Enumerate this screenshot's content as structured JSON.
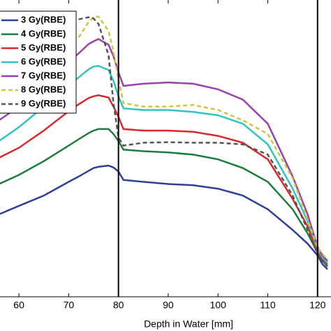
{
  "chart_data": {
    "type": "line",
    "xlabel": "Depth in Water [mm]",
    "x": [
      56,
      60,
      65,
      70,
      72,
      74,
      75,
      76,
      78,
      79,
      80,
      81,
      85,
      90,
      95,
      100,
      105,
      110,
      115,
      118,
      120,
      121,
      122
    ],
    "xlim": [
      56.2,
      122.7
    ],
    "xticks": [
      60,
      70,
      80,
      90,
      100,
      110,
      120
    ],
    "ylim": [
      5,
      100
    ],
    "vlines": [
      80,
      120
    ],
    "series": [
      {
        "name": "3 Gy(RBE)",
        "color": "#2b3f9b",
        "dashed": false,
        "values": [
          31.4,
          34.1,
          37.4,
          41.8,
          43.5,
          45.3,
          46.2,
          46.6,
          47.0,
          46.4,
          45.1,
          42.4,
          41.8,
          41.1,
          40.7,
          39.6,
          37.4,
          33.0,
          26.4,
          22.0,
          18.2,
          15.4,
          13.8
        ]
      },
      {
        "name": "4 Gy(RBE)",
        "color": "#1b7d3b",
        "dashed": false,
        "values": [
          41.1,
          44.0,
          48.4,
          53.4,
          55.4,
          57.4,
          58.2,
          58.7,
          58.7,
          57.1,
          54.9,
          52.1,
          51.6,
          51.2,
          50.5,
          49.0,
          46.2,
          41.8,
          33.0,
          25.3,
          19.1,
          16.5,
          14.7
        ]
      },
      {
        "name": "5 Gy(RBE)",
        "color": "#d82a2a",
        "dashed": false,
        "values": [
          49.5,
          52.7,
          58.2,
          64.4,
          66.6,
          68.6,
          69.2,
          69.5,
          68.8,
          65.9,
          62.6,
          58.7,
          58.2,
          58.2,
          57.8,
          56.5,
          54.3,
          49.0,
          36.3,
          27.5,
          19.1,
          16.9,
          15.4
        ]
      },
      {
        "name": "6 Gy(RBE)",
        "color": "#2fc3c3",
        "dashed": false,
        "values": [
          54.9,
          59.3,
          65.9,
          72.5,
          75.2,
          77.8,
          78.7,
          78.9,
          77.6,
          74.1,
          69.2,
          65.3,
          64.8,
          64.8,
          64.2,
          63.1,
          60.4,
          53.8,
          39.6,
          29.2,
          20.4,
          17.6,
          15.8
        ]
      },
      {
        "name": "7 Gy(RBE)",
        "color": "#9c3fb0",
        "dashed": false,
        "values": [
          61.5,
          65.9,
          73.6,
          80.2,
          82.9,
          85.9,
          86.8,
          87.5,
          85.7,
          82.0,
          76.9,
          72.5,
          73.2,
          73.6,
          73.2,
          71.4,
          68.1,
          60.4,
          43.5,
          31.4,
          20.9,
          18.2,
          16.5
        ]
      },
      {
        "name": "8 Gy(RBE)",
        "color": "#c9c93a",
        "dashed": true,
        "values": [
          null,
          null,
          null,
          null,
          88.0,
          93.0,
          94.5,
          94.7,
          90.1,
          83.5,
          74.7,
          67.0,
          65.9,
          65.9,
          66.4,
          64.8,
          61.5,
          57.1,
          42.9,
          29.7,
          20.9,
          18.7,
          16.9
        ]
      },
      {
        "name": "9 Gy(RBE)",
        "color": "#555555",
        "dashed": true,
        "values": [
          null,
          null,
          null,
          null,
          93.8,
          94.5,
          94.1,
          92.3,
          82.4,
          67.0,
          56.0,
          53.4,
          54.3,
          54.5,
          54.3,
          54.3,
          53.8,
          50.5,
          37.4,
          26.4,
          18.7,
          16.5,
          14.7
        ]
      }
    ]
  }
}
